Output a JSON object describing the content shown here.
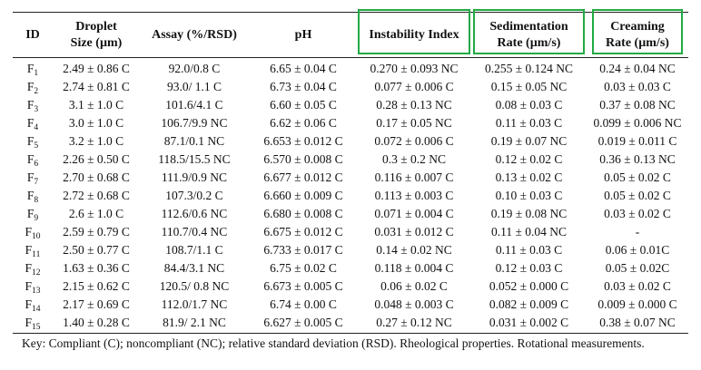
{
  "table": {
    "headers": [
      {
        "line1": "ID",
        "line2": ""
      },
      {
        "line1": "Droplet",
        "line2": "Size (µm)"
      },
      {
        "line1": "Assay (%/RSD)",
        "line2": ""
      },
      {
        "line1": "pH",
        "line2": ""
      },
      {
        "line1": "Instability Index",
        "line2": ""
      },
      {
        "line1": "Sedimentation",
        "line2": "Rate (µm/s)"
      },
      {
        "line1": "Creaming",
        "line2": "Rate (µm/s)"
      }
    ],
    "rows": [
      {
        "id": "F",
        "sub": "1",
        "cells": [
          "2.49 ± 0.86 C",
          "92.0/0.8 C",
          "6.65 ± 0.04 C",
          "0.270 ± 0.093 NC",
          "0.255 ± 0.124 NC",
          "0.24 ± 0.04 NC"
        ]
      },
      {
        "id": "F",
        "sub": "2",
        "cells": [
          "2.74 ± 0.81 C",
          "93.0/ 1.1 C",
          "6.73 ± 0.04 C",
          "0.077 ± 0.006 C",
          "0.15 ± 0.05 NC",
          "0.03 ± 0.03 C"
        ]
      },
      {
        "id": "F",
        "sub": "3",
        "cells": [
          "3.1 ± 1.0 C",
          "101.6/4.1 C",
          "6.60 ± 0.05 C",
          "0.28 ± 0.13 NC",
          "0.08 ± 0.03 C",
          "0.37 ± 0.08 NC"
        ]
      },
      {
        "id": "F",
        "sub": "4",
        "cells": [
          "3.0 ± 1.0 C",
          "106.7/9.9 NC",
          "6.62 ± 0.06 C",
          "0.17 ± 0.05 NC",
          "0.11 ± 0.03 C",
          "0.099 ± 0.006 NC"
        ]
      },
      {
        "id": "F",
        "sub": "5",
        "cells": [
          "3.2 ± 1.0 C",
          "87.1/0.1 NC",
          "6.653 ± 0.012 C",
          "0.072 ± 0.006 C",
          "0.19 ± 0.07 NC",
          "0.019 ± 0.011 C"
        ]
      },
      {
        "id": "F",
        "sub": "6",
        "cells": [
          "2.26 ± 0.50 C",
          "118.5/15.5 NC",
          "6.570 ± 0.008 C",
          "0.3 ± 0.2 NC",
          "0.12 ± 0.02 C",
          "0.36 ± 0.13 NC"
        ]
      },
      {
        "id": "F",
        "sub": "7",
        "cells": [
          "2.70 ± 0.68 C",
          "111.9/0.9 NC",
          "6.677 ± 0.012 C",
          "0.116 ± 0.007 C",
          "0.13 ± 0.02 C",
          "0.05 ± 0.02 C"
        ]
      },
      {
        "id": "F",
        "sub": "8",
        "cells": [
          "2.72 ± 0.68 C",
          "107.3/0.2 C",
          "6.660 ± 0.009 C",
          "0.113 ± 0.003 C",
          "0.10 ± 0.03 C",
          "0.05 ± 0.02 C"
        ]
      },
      {
        "id": "F",
        "sub": "9",
        "cells": [
          "2.6 ± 1.0 C",
          "112.6/0.6 NC",
          "6.680 ± 0.008 C",
          "0.071 ± 0.004 C",
          "0.19 ± 0.08 NC",
          "0.03 ± 0.02 C"
        ]
      },
      {
        "id": "F",
        "sub": "10",
        "cells": [
          "2.59 ± 0.79 C",
          "110.7/0.4 NC",
          "6.675 ± 0.012 C",
          "0.031 ± 0.012 C",
          "0.11 ± 0.04 NC",
          "-"
        ]
      },
      {
        "id": "F",
        "sub": "11",
        "cells": [
          "2.50 ± 0.77 C",
          "108.7/1.1 C",
          "6.733 ± 0.017 C",
          "0.14 ± 0.02 NC",
          "0.11 ± 0.03 C",
          "0.06 ± 0.01C"
        ]
      },
      {
        "id": "F",
        "sub": "12",
        "cells": [
          "1.63 ± 0.36 C",
          "84.4/3.1 NC",
          "6.75 ± 0.02 C",
          "0.118 ± 0.004 C",
          "0.12 ± 0.03 C",
          "0.05 ± 0.02C"
        ]
      },
      {
        "id": "F",
        "sub": "13",
        "cells": [
          "2.15 ± 0.62 C",
          "120.5/ 0.8 NC",
          "6.673 ± 0.005 C",
          "0.06 ± 0.02 C",
          "0.052 ± 0.000 C",
          "0.03 ± 0.02 C"
        ]
      },
      {
        "id": "F",
        "sub": "14",
        "cells": [
          "2.17 ± 0.69 C",
          "112.0/1.7 NC",
          "6.74 ± 0.00 C",
          "0.048 ± 0.003 C",
          "0.082 ± 0.009 C",
          "0.009 ± 0.000 C"
        ]
      },
      {
        "id": "F",
        "sub": "15",
        "cells": [
          "1.40 ± 0.28 C",
          "81.9/ 2.1 NC",
          "6.627 ± 0.005 C",
          "0.27 ± 0.12 NC",
          "0.031 ± 0.002 C",
          "0.38 ± 0.07 NC"
        ]
      }
    ]
  },
  "key": "Key:  Compliant (C); noncompliant (NC); relative standard deviation (RSD). Rheological properties. Rotational measurements.",
  "colors": {
    "highlight": "#22aa44",
    "rule": "#222222"
  }
}
